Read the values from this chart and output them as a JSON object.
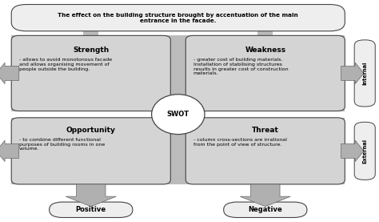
{
  "title": "The effect on the building structure brought by accentuation of the main\nentrance in the facade.",
  "swot_label": "SWOT",
  "quadrants": [
    {
      "name": "Strength",
      "text": "- allows to avoid monotonous facade\nand allows organising movement of\npeople outside the building."
    },
    {
      "name": "Weakness",
      "text": "- greater cost of building materials.\nInstallation of stabilising structures\nresults in greater cost of construction\nmaterials."
    },
    {
      "name": "Opportunity",
      "text": "- to combine different functional\npurposes of building rooms in one\nvolume."
    },
    {
      "name": "Threat",
      "text": "- column cross-sections are irrational\nfrom the point of view of structure."
    }
  ],
  "bottom_labels": [
    "Positive",
    "Negative"
  ],
  "side_labels": [
    "Internal",
    "External"
  ],
  "box_fill": "#d4d4d4",
  "box_edge": "#444444",
  "arrow_fill": "#b0b0b0",
  "arrow_edge": "#666666",
  "title_fill": "#eeeeee",
  "label_fill": "#eeeeee",
  "bg_color": "#ffffff",
  "connector_fill": "#bbbbbb"
}
